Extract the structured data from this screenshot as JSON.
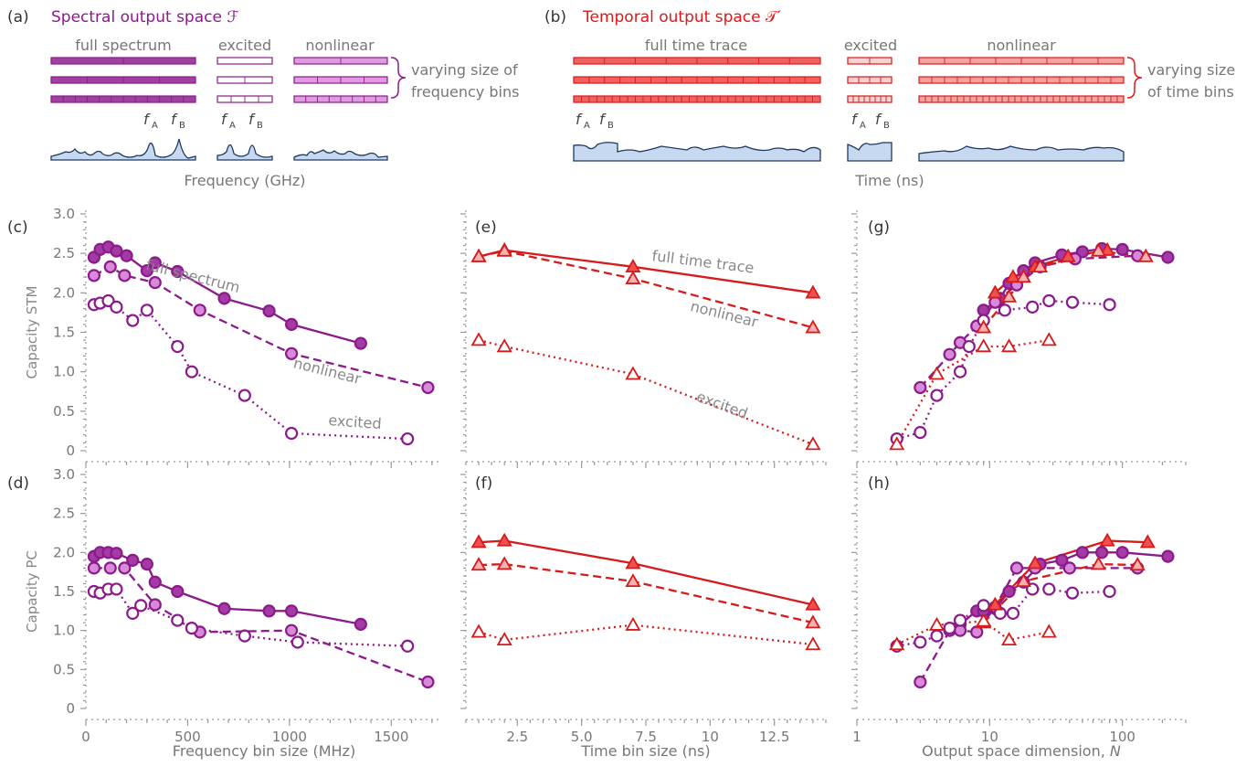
{
  "colors": {
    "purple": "#8B1A8B",
    "purple_light": "#C766C7",
    "purple_pale": "#E9A6E9",
    "red": "#D71A1A",
    "red_light": "#F07B7B",
    "red_pale": "#F9B9B9",
    "gray": "#888888",
    "axis": "#777777",
    "fill_blue": "#C6D9F1",
    "trace": "#1E3A5F"
  },
  "top": {
    "a": {
      "panel": "(a)",
      "title": "Spectral output space ℱ",
      "groups": [
        "full spectrum",
        "excited",
        "nonlinear"
      ],
      "fA": "f",
      "fB": "f",
      "subA": "A",
      "subB": "B",
      "brace_note": [
        "varying size of",
        "frequency bins"
      ],
      "xlabel": "Frequency (GHz)"
    },
    "b": {
      "panel": "(b)",
      "title": "Temporal output space 𝒯′",
      "groups": [
        "full time trace",
        "excited",
        "nonlinear"
      ],
      "fA": "f",
      "fB": "f",
      "subA": "A",
      "subB": "B",
      "brace_note": [
        "varying size",
        "of time bins"
      ],
      "xlabel": "Time (ns)"
    }
  },
  "chart_data": [
    {
      "id": "c",
      "panel": "(c)",
      "type": "line",
      "ylabel": "Capacity STM",
      "xlabel": "",
      "xscale": "linear",
      "xlim": [
        0,
        1750
      ],
      "ylim": [
        0,
        3.0
      ],
      "yticks": [
        "0",
        "0.5",
        "1.0",
        "1.5",
        "2.0",
        "2.5",
        "3.0"
      ],
      "xticks": [],
      "annotations": [
        {
          "text": "full spectrum",
          "x": 520,
          "y": 2.15,
          "rotate": 14
        },
        {
          "text": "nonlinear",
          "x": 1180,
          "y": 0.95,
          "rotate": 14
        },
        {
          "text": "excited",
          "x": 1320,
          "y": 0.3,
          "rotate": 4
        }
      ],
      "series": [
        {
          "name": "full spectrum",
          "style": "solid",
          "marker": "circle-filled",
          "color": "purple",
          "x": [
            40,
            70,
            110,
            150,
            200,
            300,
            340,
            450,
            680,
            900,
            1010,
            1350
          ],
          "y": [
            2.45,
            2.55,
            2.58,
            2.53,
            2.47,
            2.28,
            2.38,
            2.27,
            1.93,
            1.77,
            1.6,
            1.36
          ]
        },
        {
          "name": "nonlinear",
          "style": "dashed",
          "marker": "circle-light",
          "color": "purple",
          "x": [
            40,
            120,
            190,
            340,
            560,
            1010,
            1680
          ],
          "y": [
            2.22,
            2.33,
            2.22,
            2.13,
            1.78,
            1.23,
            0.8
          ]
        },
        {
          "name": "excited",
          "style": "dotted",
          "marker": "circle-open",
          "color": "purple",
          "x": [
            40,
            70,
            110,
            150,
            230,
            300,
            450,
            520,
            780,
            1010,
            1580
          ],
          "y": [
            1.85,
            1.87,
            1.9,
            1.82,
            1.65,
            1.78,
            1.32,
            1.0,
            0.7,
            0.22,
            0.15
          ]
        }
      ]
    },
    {
      "id": "d",
      "panel": "(d)",
      "type": "line",
      "ylabel": "Capacity PC",
      "xlabel": "Frequency bin size (MHz)",
      "xscale": "linear",
      "xlim": [
        0,
        1750
      ],
      "ylim": [
        0,
        3.0
      ],
      "yticks": [
        "0",
        "0.5",
        "1.0",
        "1.5",
        "2.0",
        "2.5",
        "3.0"
      ],
      "xticks": [
        {
          "v": 0,
          "l": "0"
        },
        {
          "v": 500,
          "l": "500"
        },
        {
          "v": 1000,
          "l": "1000"
        },
        {
          "v": 1500,
          "l": "1500"
        }
      ],
      "annotations": [],
      "series": [
        {
          "name": "full spectrum",
          "style": "solid",
          "marker": "circle-filled",
          "color": "purple",
          "x": [
            40,
            70,
            110,
            150,
            230,
            300,
            340,
            450,
            680,
            900,
            1010,
            1350
          ],
          "y": [
            1.95,
            2.0,
            2.0,
            1.99,
            1.9,
            1.85,
            1.62,
            1.5,
            1.28,
            1.25,
            1.25,
            1.08
          ]
        },
        {
          "name": "nonlinear",
          "style": "dashed",
          "marker": "circle-light",
          "color": "purple",
          "x": [
            40,
            120,
            190,
            340,
            560,
            1010,
            1680
          ],
          "y": [
            1.8,
            1.8,
            1.8,
            1.33,
            0.98,
            1.0,
            0.34
          ]
        },
        {
          "name": "excited",
          "style": "dotted",
          "marker": "circle-open",
          "color": "purple",
          "x": [
            40,
            70,
            110,
            150,
            230,
            270,
            450,
            520,
            780,
            1040,
            1580
          ],
          "y": [
            1.5,
            1.48,
            1.53,
            1.53,
            1.22,
            1.32,
            1.13,
            1.03,
            0.93,
            0.85,
            0.8
          ]
        }
      ]
    },
    {
      "id": "e",
      "panel": "(e)",
      "type": "line",
      "ylabel": "",
      "xlabel": "",
      "xscale": "linear",
      "xlim": [
        0.5,
        14.5
      ],
      "ylim": [
        0,
        3.0
      ],
      "yticks": [],
      "xticks": [],
      "annotations": [
        {
          "text": "full time trace",
          "x": 9.7,
          "y": 2.33,
          "rotate": 7
        },
        {
          "text": "nonlinear",
          "x": 10.5,
          "y": 1.67,
          "rotate": 14
        },
        {
          "text": "excited",
          "x": 10.4,
          "y": 0.52,
          "rotate": 20
        }
      ],
      "series": [
        {
          "name": "full time trace",
          "style": "solid",
          "marker": "tri-filled",
          "color": "red",
          "x": [
            1,
            2,
            7,
            14
          ],
          "y": [
            2.46,
            2.54,
            2.33,
            2.0
          ]
        },
        {
          "name": "nonlinear",
          "style": "dashed",
          "marker": "tri-light",
          "color": "red",
          "x": [
            1,
            2,
            7,
            14
          ],
          "y": [
            2.46,
            2.53,
            2.18,
            1.56
          ]
        },
        {
          "name": "excited",
          "style": "dotted",
          "marker": "tri-open",
          "color": "red",
          "x": [
            1,
            2,
            7,
            14
          ],
          "y": [
            1.4,
            1.32,
            0.97,
            0.08
          ]
        }
      ]
    },
    {
      "id": "f",
      "panel": "(f)",
      "type": "line",
      "ylabel": "",
      "xlabel": "Time bin size (ns)",
      "xscale": "linear",
      "xlim": [
        0.5,
        14.5
      ],
      "ylim": [
        0,
        3.0
      ],
      "yticks": [],
      "xticks": [
        {
          "v": 2.5,
          "l": "2.5"
        },
        {
          "v": 5,
          "l": "5.0"
        },
        {
          "v": 7.5,
          "l": "7.5"
        },
        {
          "v": 10,
          "l": "10"
        },
        {
          "v": 12.5,
          "l": "12.5"
        }
      ],
      "annotations": [],
      "series": [
        {
          "name": "full time trace",
          "style": "solid",
          "marker": "tri-filled",
          "color": "red",
          "x": [
            1,
            2,
            7,
            14
          ],
          "y": [
            2.13,
            2.15,
            1.86,
            1.33
          ]
        },
        {
          "name": "nonlinear",
          "style": "dashed",
          "marker": "tri-light",
          "color": "red",
          "x": [
            1,
            2,
            7,
            14
          ],
          "y": [
            1.84,
            1.85,
            1.63,
            1.1
          ]
        },
        {
          "name": "excited",
          "style": "dotted",
          "marker": "tri-open",
          "color": "red",
          "x": [
            1,
            2,
            7,
            14
          ],
          "y": [
            0.98,
            0.88,
            1.07,
            0.82
          ]
        }
      ]
    },
    {
      "id": "g",
      "panel": "(g)",
      "type": "line",
      "ylabel": "",
      "xlabel": "",
      "xscale": "log",
      "xlim": [
        1,
        300
      ],
      "ylim": [
        0,
        3.0
      ],
      "yticks": [],
      "xticks": [],
      "annotations": [],
      "series": [
        {
          "name": "spectral full",
          "style": "solid",
          "marker": "circle-filled",
          "color": "purple",
          "x": [
            9,
            12,
            14,
            18,
            22,
            35,
            50,
            70,
            100,
            220
          ],
          "y": [
            1.78,
            1.93,
            2.12,
            2.28,
            2.38,
            2.48,
            2.52,
            2.56,
            2.55,
            2.45
          ]
        },
        {
          "name": "spectral nonlinear",
          "style": "dashed",
          "marker": "circle-light",
          "color": "purple",
          "x": [
            3,
            5,
            6,
            8,
            11,
            16,
            24,
            44,
            130
          ],
          "y": [
            0.8,
            1.22,
            1.37,
            1.58,
            1.88,
            2.1,
            2.33,
            2.43,
            2.47
          ]
        },
        {
          "name": "spectral excited",
          "style": "dotted",
          "marker": "circle-open",
          "color": "purple",
          "x": [
            2,
            3,
            4,
            6,
            7,
            9,
            13,
            21,
            28,
            42,
            80
          ],
          "y": [
            0.15,
            0.23,
            0.7,
            1.0,
            1.32,
            1.65,
            1.78,
            1.82,
            1.9,
            1.88,
            1.85
          ]
        },
        {
          "name": "temporal full",
          "style": "solid",
          "marker": "tri-filled",
          "color": "red",
          "x": [
            11,
            15,
            22,
            39,
            77
          ],
          "y": [
            2.0,
            2.2,
            2.33,
            2.46,
            2.54
          ]
        },
        {
          "name": "temporal nonlinear",
          "style": "dashed",
          "marker": "tri-light",
          "color": "red",
          "x": [
            9,
            14,
            18,
            24,
            66,
            150
          ],
          "y": [
            1.56,
            1.95,
            2.2,
            2.33,
            2.53,
            2.46
          ]
        },
        {
          "name": "temporal excited",
          "style": "dotted",
          "marker": "tri-open",
          "color": "red",
          "x": [
            2,
            4,
            9,
            14,
            28
          ],
          "y": [
            0.08,
            0.97,
            1.32,
            1.32,
            1.4
          ]
        }
      ]
    },
    {
      "id": "h",
      "panel": "(h)",
      "type": "line",
      "ylabel": "",
      "xlabel": "Output space dimension, N",
      "xscale": "log",
      "xlim": [
        1,
        300
      ],
      "ylim": [
        0,
        3.0
      ],
      "yticks": [],
      "xticks": [
        {
          "v": 1,
          "l": "1"
        },
        {
          "v": 10,
          "l": "10"
        },
        {
          "v": 100,
          "l": "100"
        }
      ],
      "annotations": [],
      "series": [
        {
          "name": "spectral full",
          "style": "solid",
          "marker": "circle-filled",
          "color": "purple",
          "x": [
            6,
            8,
            9,
            11,
            14,
            18,
            24,
            35,
            50,
            70,
            100,
            220
          ],
          "y": [
            1.08,
            1.25,
            1.25,
            1.28,
            1.5,
            1.62,
            1.85,
            1.9,
            2.0,
            2.0,
            2.0,
            1.95
          ]
        },
        {
          "name": "spectral nonlinear",
          "style": "dashed",
          "marker": "circle-light",
          "color": "purple",
          "x": [
            3,
            5,
            6,
            8,
            11,
            16,
            22,
            40,
            130
          ],
          "y": [
            0.34,
            1.0,
            1.0,
            0.98,
            1.3,
            1.8,
            1.8,
            1.8,
            1.8
          ]
        },
        {
          "name": "spectral excited",
          "style": "dotted",
          "marker": "circle-open",
          "color": "purple",
          "x": [
            2,
            3,
            4,
            5,
            6,
            9,
            12,
            15,
            21,
            28,
            42,
            80
          ],
          "y": [
            0.8,
            0.85,
            0.93,
            1.03,
            1.13,
            1.32,
            1.22,
            1.22,
            1.53,
            1.53,
            1.48,
            1.5
          ]
        },
        {
          "name": "temporal full",
          "style": "solid",
          "marker": "tri-filled",
          "color": "red",
          "x": [
            11,
            22,
            77,
            155
          ],
          "y": [
            1.33,
            1.86,
            2.15,
            2.13
          ]
        },
        {
          "name": "temporal nonlinear",
          "style": "dashed",
          "marker": "tri-light",
          "color": "red",
          "x": [
            9,
            18,
            66,
            130
          ],
          "y": [
            1.1,
            1.63,
            1.85,
            1.84
          ]
        },
        {
          "name": "temporal excited",
          "style": "dotted",
          "marker": "tri-open",
          "color": "red",
          "x": [
            2,
            4,
            9,
            14,
            28
          ],
          "y": [
            0.82,
            1.07,
            1.12,
            0.88,
            0.98
          ]
        }
      ]
    }
  ]
}
